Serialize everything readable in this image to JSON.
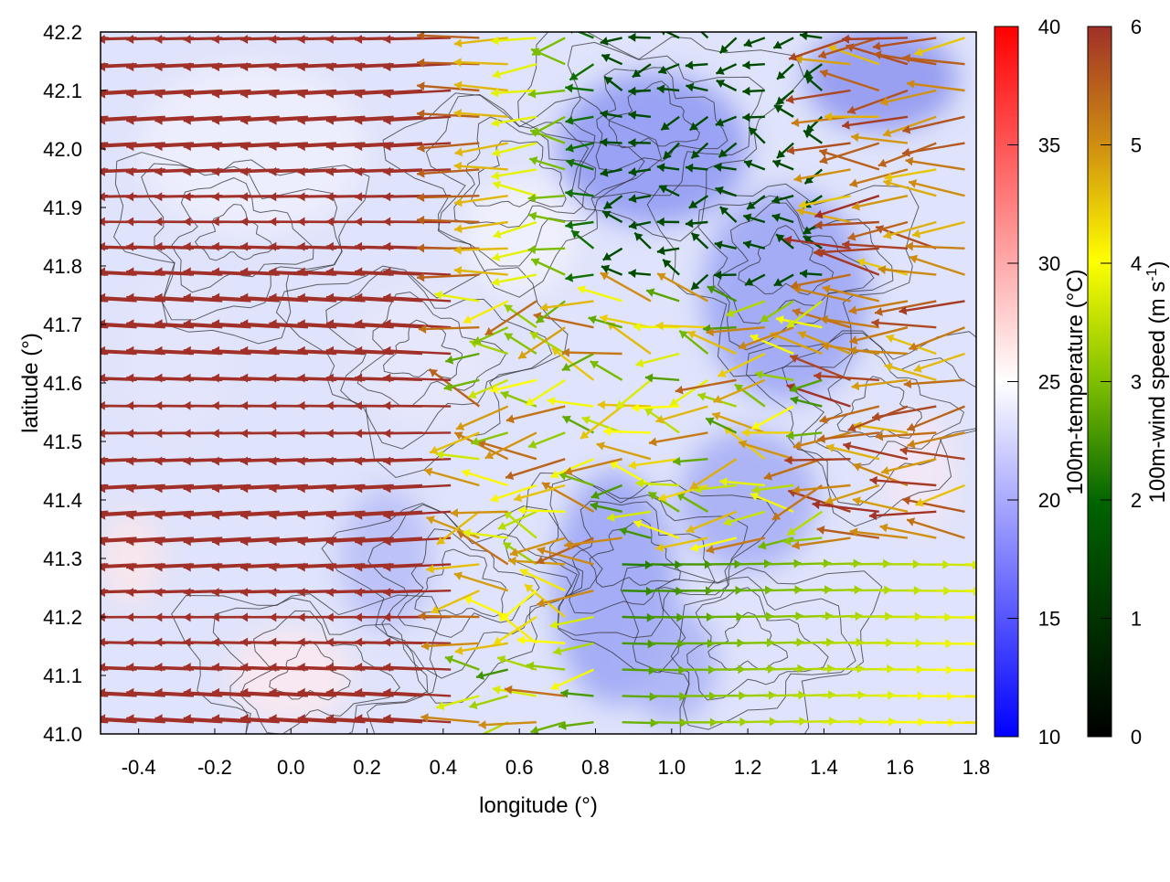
{
  "chart_data": {
    "type": "vector-field",
    "title": "",
    "xlabel": "longitude (°)",
    "ylabel": "latitude (°)",
    "xlim": [
      -0.5,
      1.8
    ],
    "ylim": [
      41.0,
      42.2
    ],
    "x_ticks": [
      "-0.4",
      "-0.2",
      "0.0",
      "0.2",
      "0.4",
      "0.6",
      "0.8",
      "1.0",
      "1.2",
      "1.4",
      "1.6",
      "1.8"
    ],
    "y_ticks": [
      "41.0",
      "41.1",
      "41.2",
      "41.3",
      "41.4",
      "41.5",
      "41.6",
      "41.7",
      "41.8",
      "41.9",
      "42.0",
      "42.1",
      "42.2"
    ],
    "background": "100m-temperature field (blue-white-red), mostly 17-25 °C",
    "contours": "black terrain contour lines",
    "temperature_colorbar": {
      "label": "100m-temperature (°C)",
      "range": [
        10,
        40
      ],
      "ticks": [
        "10",
        "15",
        "20",
        "25",
        "30",
        "35",
        "40"
      ],
      "colors": [
        "#0000ff",
        "#ffffff",
        "#ff0000"
      ]
    },
    "wind_colorbar": {
      "label": "100m-wind speed (m s",
      "label_sup": "-1",
      "label_end": ")",
      "range": [
        0,
        6
      ],
      "ticks": [
        "0",
        "1",
        "2",
        "3",
        "4",
        "5",
        "6"
      ],
      "colors": [
        "#000000",
        "#006400",
        "#7fbf00",
        "#ffff00",
        "#d09010",
        "#a03028"
      ]
    },
    "wind_regions": [
      {
        "region": "west (lon -0.5 to 0.5)",
        "direction": "westward",
        "speed": 6
      },
      {
        "region": "north-east (lon 0.6 to 1.4, lat 41.8 to 42.2)",
        "direction": "weak, variable",
        "speed": 1.5
      },
      {
        "region": "south-east (lon 0.9 to 1.8, lat 41.0 to 41.3)",
        "direction": "eastward",
        "speed": 3
      }
    ]
  }
}
